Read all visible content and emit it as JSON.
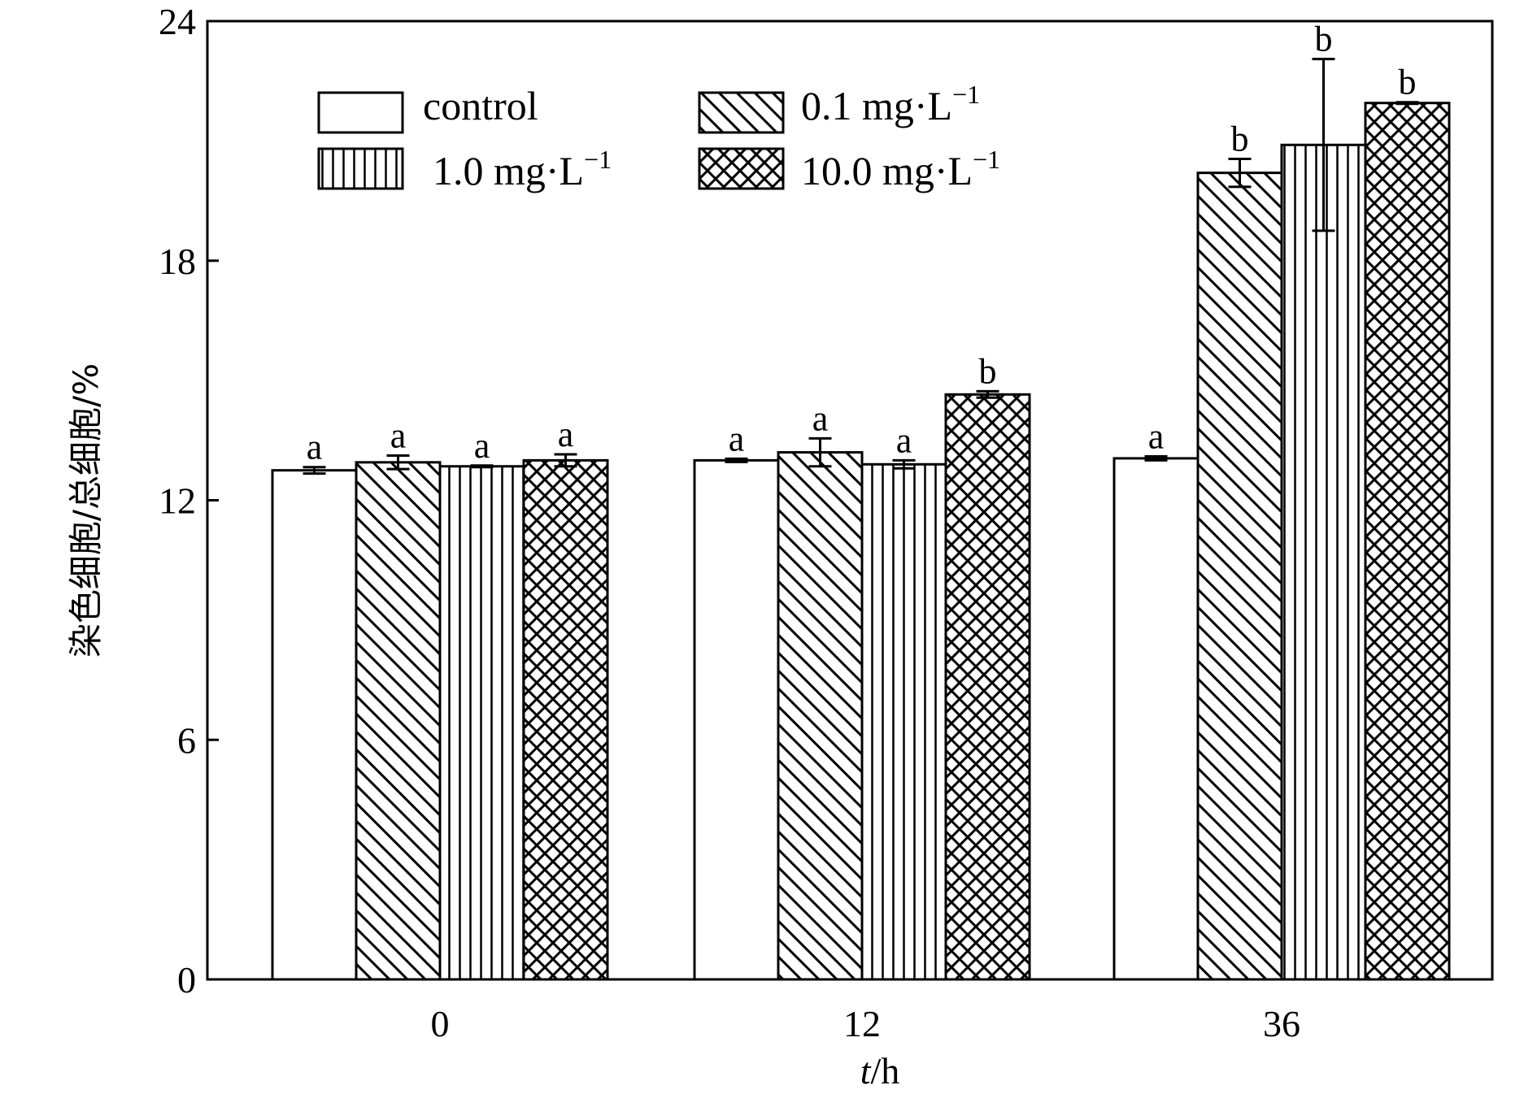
{
  "chart_data": {
    "type": "bar",
    "title": "",
    "xlabel_italic": "t",
    "xlabel_rest": "/h",
    "ylabel": "染色细胞/总细胞/%",
    "ylim": [
      0,
      24
    ],
    "yticks": [
      0,
      6,
      12,
      18,
      24
    ],
    "categories": [
      "0",
      "12",
      "36"
    ],
    "legend_placement": "top-left inside",
    "series": [
      {
        "name": "control",
        "name_main": "control",
        "name_sup": "",
        "pattern": "blank",
        "values": [
          12.75,
          13.0,
          13.05
        ],
        "errors": [
          0.08,
          0.04,
          0.05
        ],
        "labels": [
          "a",
          "a",
          "a"
        ]
      },
      {
        "name": "0.1 mg·L−1",
        "name_main": "0.1 mg·L",
        "name_sup": "−1",
        "pattern": "diagonal",
        "values": [
          12.95,
          13.2,
          20.2
        ],
        "errors": [
          0.17,
          0.35,
          0.35
        ],
        "labels": [
          "a",
          "a",
          "b"
        ]
      },
      {
        "name": "1.0 mg·L−1",
        "name_main": "1.0 mg·L",
        "name_sup": "−1",
        "pattern": "vertical",
        "values": [
          12.85,
          12.9,
          20.9
        ],
        "errors": [
          0.02,
          0.1,
          2.15
        ],
        "labels": [
          "a",
          "a",
          "b"
        ]
      },
      {
        "name": "10.0 mg·L−1",
        "name_main": "10.0 mg·L",
        "name_sup": "−1",
        "pattern": "crosshatch",
        "values": [
          13.0,
          14.65,
          21.95
        ],
        "errors": [
          0.15,
          0.08,
          0.02
        ],
        "labels": [
          "a",
          "b",
          "b"
        ]
      }
    ]
  }
}
